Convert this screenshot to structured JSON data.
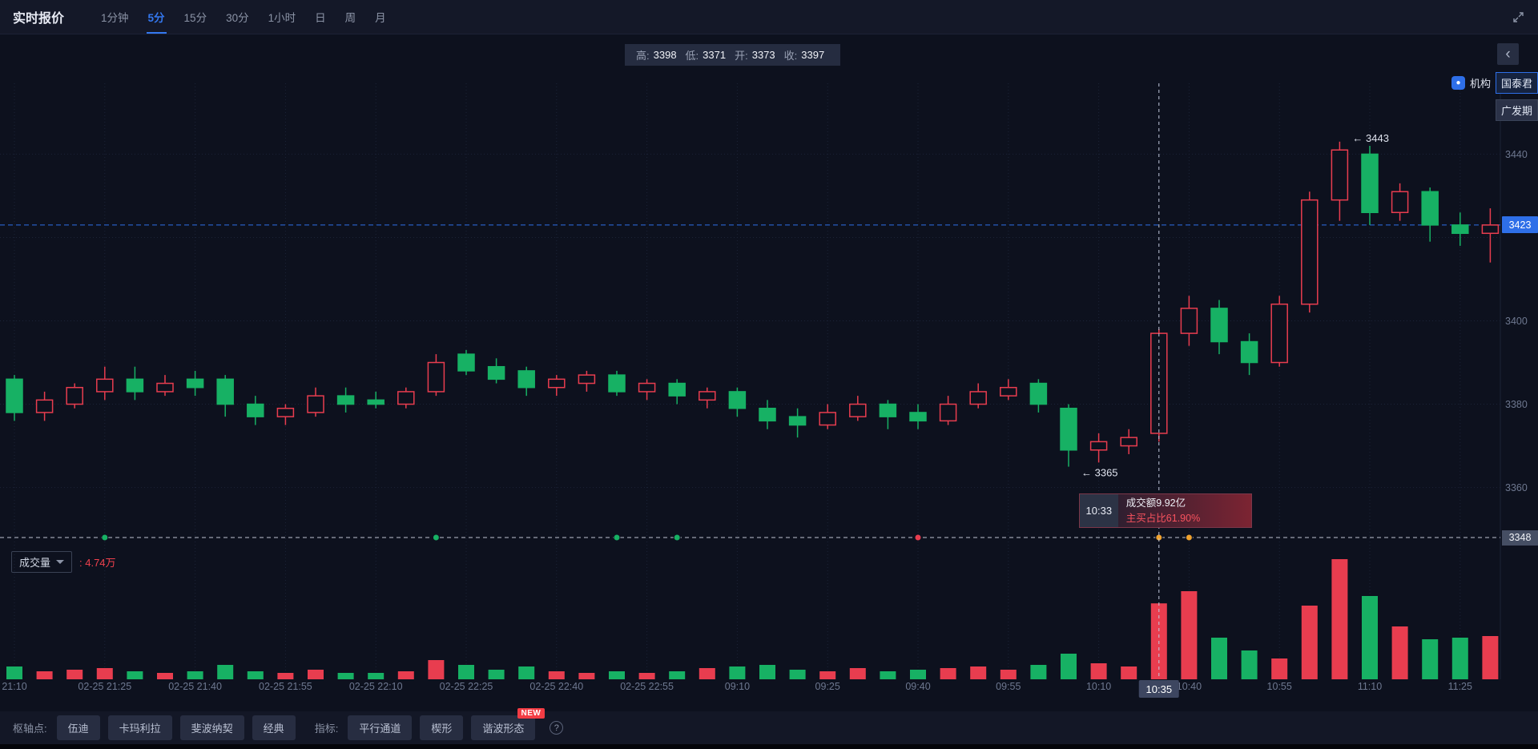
{
  "colors": {
    "up": "#e83d4f",
    "down": "#17b164",
    "accent": "#2e6fe8",
    "baseline": "#dde3f2",
    "crosshair": "#c2c9dd",
    "dot_green": "#17b164",
    "dot_red": "#e83d4f",
    "dot_orange": "#f0a22e",
    "grid": "#1c2337",
    "axis_text": "#6e7890",
    "annotation_text": "#dfe3ee",
    "candle_hollow_fill": "#0d111e"
  },
  "header": {
    "title": "实时报价",
    "timeframes": [
      {
        "label": "1分钟",
        "active": false
      },
      {
        "label": "5分",
        "active": true
      },
      {
        "label": "15分",
        "active": false
      },
      {
        "label": "30分",
        "active": false
      },
      {
        "label": "1小时",
        "active": false
      },
      {
        "label": "日",
        "active": false
      },
      {
        "label": "周",
        "active": false
      },
      {
        "label": "月",
        "active": false
      }
    ]
  },
  "ohlc_bar": {
    "high_label": "高:",
    "high": "3398",
    "low_label": "低:",
    "low": "3371",
    "open_label": "开:",
    "open": "3373",
    "close_label": "收:",
    "close": "3397"
  },
  "side_panel": {
    "row1_text": "机构",
    "row1_button": "国泰君",
    "row2_button": "广发期"
  },
  "price_axis": {
    "current_price": "3423",
    "baseline": "3348"
  },
  "crosshair_time_label": "10:35",
  "crosshair_tooltip": {
    "time": "10:33",
    "line1": "成交额9.92亿",
    "line2": "主买占比61.90%"
  },
  "volume_header": {
    "label": "成交量",
    "value": ": 4.74万"
  },
  "footer": {
    "pivot_label": "枢轴点:",
    "pivot_buttons": [
      "伍迪",
      "卡玛利拉",
      "斐波纳契",
      "经典"
    ],
    "indicator_label": "指标:",
    "indicator_buttons": [
      "平行通道",
      "楔形",
      "谐波形态"
    ],
    "new_badge": "NEW",
    "help": "?"
  },
  "chart_data": {
    "type": "candlestick+volume",
    "interval": "5分",
    "ylim": [
      3348,
      3457
    ],
    "price_gridlines": [
      3440,
      3420,
      3400,
      3380,
      3360
    ],
    "price_axis_labels": [
      "3440",
      "3400",
      "3380",
      "3360"
    ],
    "current_price": 3423,
    "baseline_price": 3348,
    "crosshair_index": 38,
    "volume_unit": "万",
    "candle_fields": [
      "time",
      "open",
      "high",
      "low",
      "close",
      "volume"
    ],
    "candles": [
      [
        "21:10",
        3386,
        3387,
        3376,
        3378,
        0.8
      ],
      [
        "21:15",
        3378,
        3383,
        3376,
        3381,
        0.5
      ],
      [
        "21:20",
        3380,
        3385,
        3379,
        3384,
        0.6
      ],
      [
        "21:25",
        3383,
        3389,
        3381,
        3386,
        0.7
      ],
      [
        "21:30",
        3386,
        3389,
        3381,
        3383,
        0.5
      ],
      [
        "21:35",
        3383,
        3387,
        3382,
        3385,
        0.4
      ],
      [
        "21:40",
        3386,
        3388,
        3382,
        3384,
        0.5
      ],
      [
        "21:45",
        3386,
        3387,
        3377,
        3380,
        0.9
      ],
      [
        "21:50",
        3380,
        3382,
        3375,
        3377,
        0.5
      ],
      [
        "21:55",
        3377,
        3380,
        3375,
        3379,
        0.4
      ],
      [
        "22:00",
        3378,
        3384,
        3377,
        3382,
        0.6
      ],
      [
        "22:05",
        3382,
        3384,
        3378,
        3380,
        0.4
      ],
      [
        "22:10",
        3381,
        3383,
        3379,
        3380,
        0.4
      ],
      [
        "22:15",
        3380,
        3384,
        3379,
        3383,
        0.5
      ],
      [
        "22:20",
        3383,
        3392,
        3382,
        3390,
        1.2
      ],
      [
        "22:25",
        3392,
        3393,
        3387,
        3388,
        0.9
      ],
      [
        "22:30",
        3389,
        3391,
        3385,
        3386,
        0.6
      ],
      [
        "22:35",
        3388,
        3389,
        3382,
        3384,
        0.8
      ],
      [
        "22:40",
        3384,
        3387,
        3382,
        3386,
        0.5
      ],
      [
        "22:45",
        3385,
        3388,
        3383,
        3387,
        0.4
      ],
      [
        "22:50",
        3387,
        3388,
        3382,
        3383,
        0.5
      ],
      [
        "22:55",
        3383,
        3386,
        3381,
        3385,
        0.4
      ],
      [
        "23:00",
        3385,
        3386,
        3380,
        3382,
        0.5
      ],
      [
        "09:05",
        3381,
        3384,
        3379,
        3383,
        0.7
      ],
      [
        "09:10",
        3383,
        3384,
        3377,
        3379,
        0.8
      ],
      [
        "09:15",
        3379,
        3381,
        3374,
        3376,
        0.9
      ],
      [
        "09:20",
        3377,
        3379,
        3372,
        3375,
        0.6
      ],
      [
        "09:25",
        3375,
        3380,
        3374,
        3378,
        0.5
      ],
      [
        "09:30",
        3377,
        3382,
        3376,
        3380,
        0.7
      ],
      [
        "09:35",
        3380,
        3381,
        3374,
        3377,
        0.5
      ],
      [
        "09:40",
        3378,
        3380,
        3374,
        3376,
        0.6
      ],
      [
        "09:45",
        3376,
        3382,
        3375,
        3380,
        0.7
      ],
      [
        "09:50",
        3380,
        3385,
        3379,
        3383,
        0.8
      ],
      [
        "09:55",
        3382,
        3386,
        3381,
        3384,
        0.6
      ],
      [
        "10:00",
        3385,
        3386,
        3378,
        3380,
        0.9
      ],
      [
        "10:05",
        3379,
        3380,
        3365,
        3369,
        1.6
      ],
      [
        "10:10",
        3369,
        3373,
        3366,
        3371,
        1.0
      ],
      [
        "10:15",
        3370,
        3374,
        3368,
        3372,
        0.8
      ],
      [
        "10:35",
        3373,
        3398,
        3371,
        3397,
        4.74
      ],
      [
        "10:40",
        3397,
        3406,
        3394,
        3403,
        5.5
      ],
      [
        "10:45",
        3403,
        3405,
        3392,
        3395,
        2.6
      ],
      [
        "10:50",
        3395,
        3397,
        3387,
        3390,
        1.8
      ],
      [
        "10:55",
        3390,
        3406,
        3389,
        3404,
        1.3
      ],
      [
        "11:00",
        3404,
        3431,
        3402,
        3429,
        4.6
      ],
      [
        "11:05",
        3429,
        3443,
        3424,
        3441,
        7.5
      ],
      [
        "11:10",
        3440,
        3442,
        3423,
        3426,
        5.2
      ],
      [
        "11:15",
        3426,
        3433,
        3424,
        3431,
        3.3
      ],
      [
        "11:20",
        3431,
        3432,
        3419,
        3423,
        2.5
      ],
      [
        "11:25",
        3423,
        3426,
        3418,
        3421,
        2.6
      ],
      [
        "11:30",
        3421,
        3427,
        3414,
        3423,
        2.7
      ]
    ],
    "time_labels": [
      {
        "label": "21:10",
        "index": 0
      },
      {
        "label": "02-25 21:25",
        "index": 3
      },
      {
        "label": "02-25 21:40",
        "index": 6
      },
      {
        "label": "02-25 21:55",
        "index": 9
      },
      {
        "label": "02-25 22:10",
        "index": 12
      },
      {
        "label": "02-25 22:25",
        "index": 15
      },
      {
        "label": "02-25 22:40",
        "index": 18
      },
      {
        "label": "02-25 22:55",
        "index": 21
      },
      {
        "label": "09:10",
        "index": 24
      },
      {
        "label": "09:25",
        "index": 27
      },
      {
        "label": "09:40",
        "index": 30
      },
      {
        "label": "09:55",
        "index": 33
      },
      {
        "label": "10:10",
        "index": 36
      },
      {
        "label": "10:40",
        "index": 39
      },
      {
        "label": "10:55",
        "index": 42
      },
      {
        "label": "11:10",
        "index": 45
      },
      {
        "label": "11:25",
        "index": 48
      }
    ],
    "annotations": [
      {
        "text": "← 3443",
        "price": 3443,
        "index": 44,
        "dy": -4
      },
      {
        "text": "← 3365",
        "price": 3365,
        "index": 35,
        "dy": 8
      }
    ],
    "baseline_dots": [
      {
        "index": 3,
        "color": "green"
      },
      {
        "index": 14,
        "color": "green"
      },
      {
        "index": 20,
        "color": "green"
      },
      {
        "index": 22,
        "color": "green"
      },
      {
        "index": 30,
        "color": "red"
      },
      {
        "index": 38,
        "color": "orange"
      },
      {
        "index": 39,
        "color": "orange"
      }
    ]
  }
}
